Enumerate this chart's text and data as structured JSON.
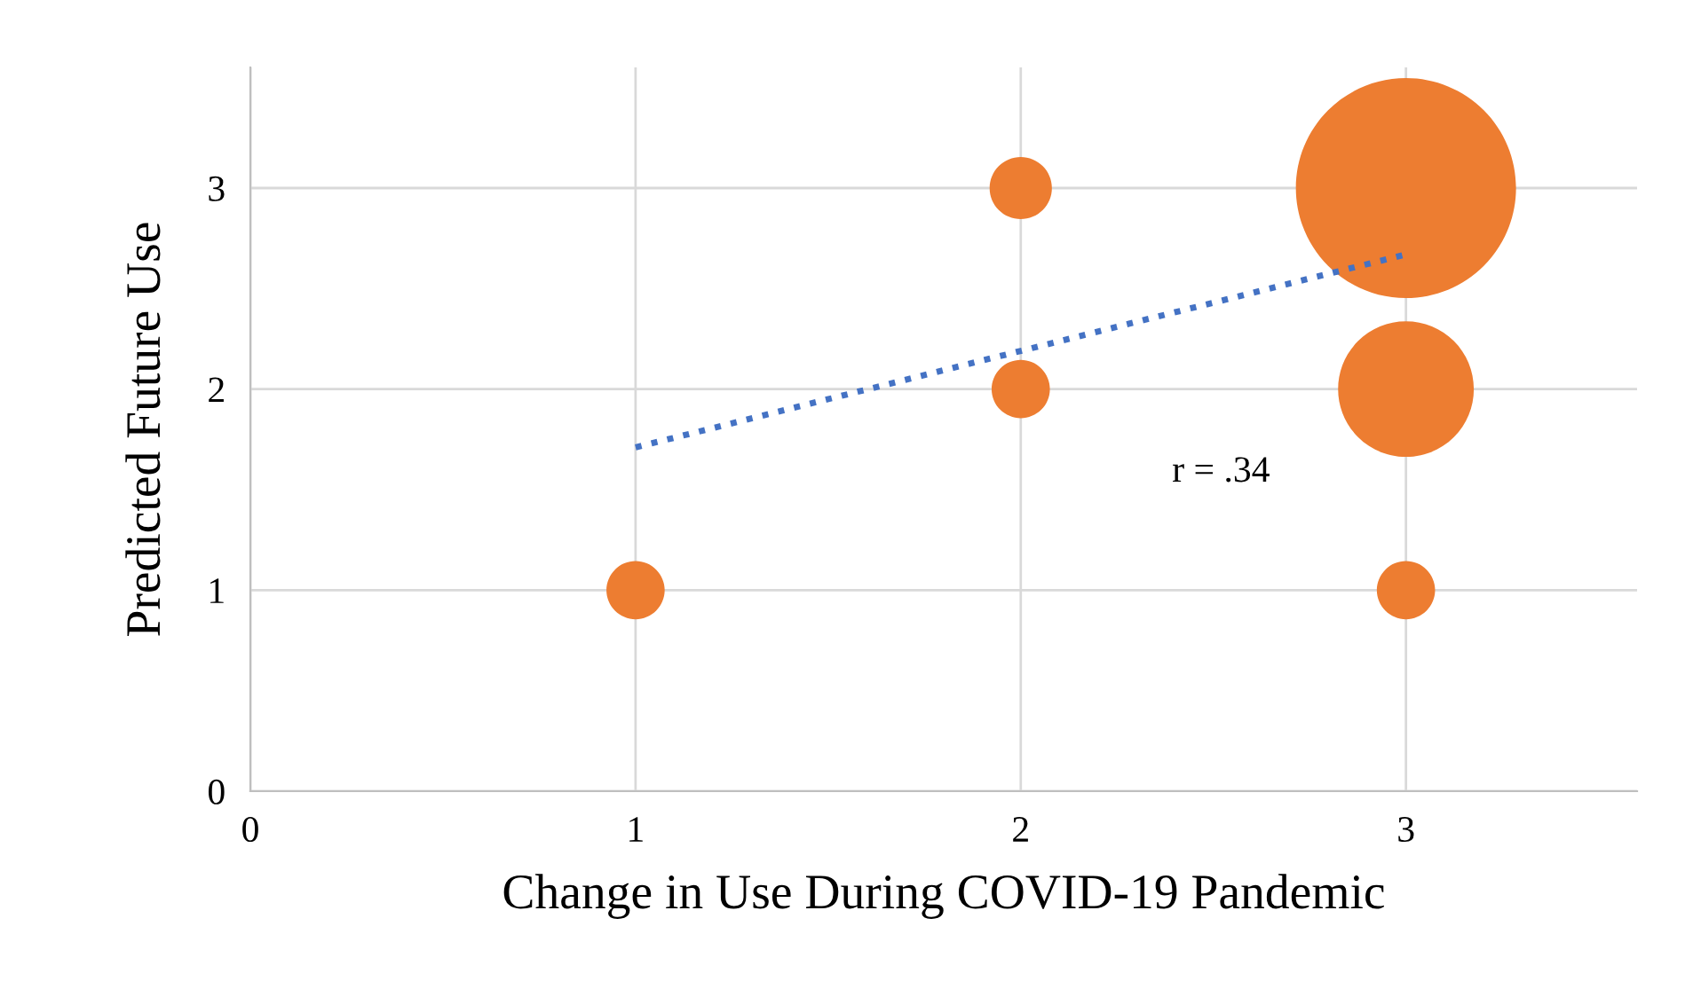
{
  "chart_data": {
    "type": "bubble",
    "xlabel": "Change in Use During COVID-19 Pandemic",
    "ylabel": "Predicted Future Use",
    "xlim": [
      0,
      3.6
    ],
    "ylim": [
      0,
      3.6
    ],
    "xticks": [
      0,
      1,
      2,
      3
    ],
    "yticks": [
      0,
      1,
      2,
      3
    ],
    "grid": true,
    "legend": false,
    "annotations": [
      "r = .34"
    ],
    "series": [
      {
        "color": "#ed7d31",
        "x": [
          1,
          2,
          2,
          3,
          3,
          3
        ],
        "values": [
          1,
          3,
          2,
          1,
          2,
          3
        ],
        "sizes": [
          0.07,
          0.08,
          0.07,
          0.07,
          0.38,
          1
        ]
      },
      {
        "type": "line",
        "color": "#4472c4",
        "line_style": "dotted",
        "x": [
          1,
          3
        ],
        "values": [
          1.71,
          2.67
        ]
      }
    ]
  }
}
